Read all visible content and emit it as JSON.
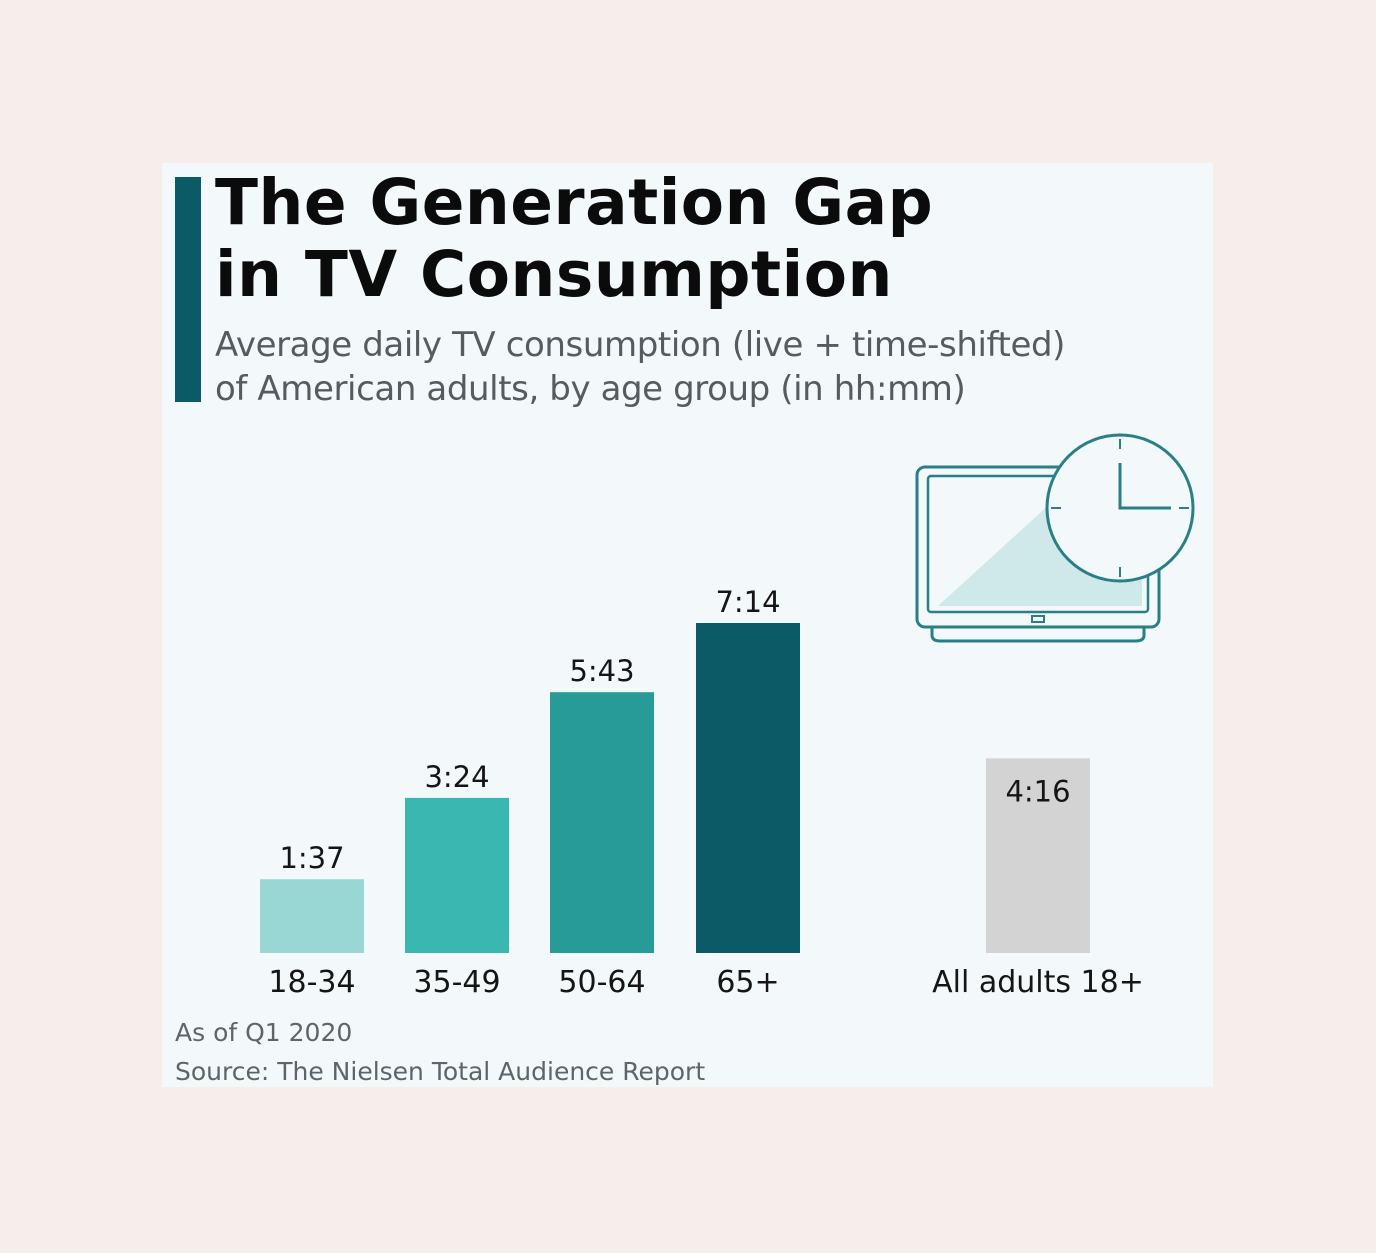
{
  "title_lines": [
    "The Generation Gap",
    "in TV Consumption"
  ],
  "subtitle_lines": [
    "Average daily TV consumption (live + time-shifted)",
    "of American adults, by age group (in hh:mm)"
  ],
  "footnote": {
    "as_of": "As of Q1 2020",
    "source": "Source: The Nielsen Total Audience Report"
  },
  "colors": {
    "background": "#f6eeeb",
    "card": "#f3f8fb",
    "accent": "#0b5b66",
    "icon_stroke": "#2a7e86",
    "icon_fill": "#cfe8ea"
  },
  "icon": "tv-with-clock-icon",
  "chart_data": {
    "type": "bar",
    "title": "The Generation Gap in TV Consumption",
    "unit": "hh:mm",
    "ylim": [
      0,
      450
    ],
    "categories": [
      "18-34",
      "35-49",
      "50-64",
      "65+",
      "All adults 18+"
    ],
    "values": [
      97,
      204,
      343,
      434,
      256
    ],
    "labels": [
      "1:37",
      "3:24",
      "5:43",
      "7:14",
      "4:16"
    ],
    "colors": [
      "#98d7d4",
      "#3bb7b2",
      "#279b98",
      "#0b5b66",
      "#d3d3d3"
    ],
    "grid": false,
    "legend": "none"
  }
}
